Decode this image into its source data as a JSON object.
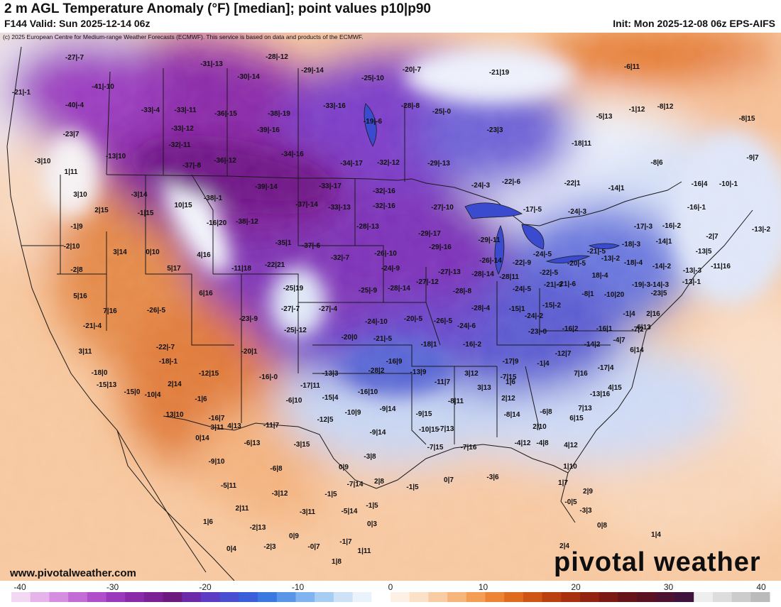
{
  "header": {
    "title": "2 m AGL Temperature Anomaly (°F) [median]; point values p10|p90",
    "subtitle": "F144 Valid: Sun 2025-12-14 06z",
    "init": "Init: Mon 2025-12-08 06z EPS-AIFS"
  },
  "credit": "(c) 2025 European Centre for Medium-range Weather Forecasts (ECMWF). This service is based on data and products of the ECMWF.",
  "website": "www.pivotalweather.com",
  "brand": "pivotal weather",
  "colorbar": {
    "ticks": [
      "-40",
      "-30",
      "-20",
      "-10",
      "0",
      "10",
      "20",
      "30",
      "40"
    ],
    "colors": [
      "#f3d8f3",
      "#e6b3ea",
      "#d68fe0",
      "#c46cd6",
      "#b04fc9",
      "#9b39bd",
      "#8a2aa9",
      "#7b2095",
      "#6c1a7e",
      "#6b2aa8",
      "#5c3cc4",
      "#4a4ed1",
      "#3a5fd8",
      "#3b78e0",
      "#5a96e8",
      "#80b3ef",
      "#a8cdf3",
      "#cde2f7",
      "#eaf2fb",
      "#ffffff",
      "#fdf1e6",
      "#fbe1c8",
      "#f9cda3",
      "#f6b67b",
      "#f39d55",
      "#ec8335",
      "#df6b1f",
      "#cf5515",
      "#bb4010",
      "#a8300f",
      "#922310",
      "#7b1a12",
      "#671419",
      "#5a1223",
      "#4d1230",
      "#3f133c",
      "#eeeeee",
      "#dddddd",
      "#cccccc",
      "#bbbbbb"
    ]
  },
  "map_data": {
    "type": "weather-anomaly-map",
    "variable": "2 m AGL Temperature Anomaly (°F) [median]",
    "point_values_format": "p10|p90",
    "points": [
      {
        "label": "-27|-7"
      },
      {
        "label": "-21|-1"
      },
      {
        "label": "-41|-10"
      },
      {
        "label": "-40|-4"
      },
      {
        "label": "-23|7"
      },
      {
        "label": "-13|10"
      },
      {
        "label": "-3|10"
      },
      {
        "label": "1|11"
      },
      {
        "label": "-31|-13"
      },
      {
        "label": "-28|-12"
      },
      {
        "label": "-30|-14"
      },
      {
        "label": "-29|-14"
      },
      {
        "label": "-25|-10"
      },
      {
        "label": "-20|-7"
      },
      {
        "label": "-21|19"
      },
      {
        "label": "-33|-4"
      },
      {
        "label": "-33|-11"
      },
      {
        "label": "-36|-15"
      },
      {
        "label": "-38|-19"
      },
      {
        "label": "-33|-16"
      },
      {
        "label": "-28|-8"
      },
      {
        "label": "-25|-0"
      },
      {
        "label": "-33|-12"
      },
      {
        "label": "-39|-16"
      },
      {
        "label": "-19|-6"
      },
      {
        "label": "-23|3"
      },
      {
        "label": "-32|-11"
      },
      {
        "label": "-34|-16"
      },
      {
        "label": "-18|11"
      },
      {
        "label": "-37|-8"
      },
      {
        "label": "-36|-12"
      },
      {
        "label": "-34|-17"
      },
      {
        "label": "-32|-12"
      },
      {
        "label": "-29|-13"
      },
      {
        "label": "-24|-3"
      },
      {
        "label": "-22|-6"
      },
      {
        "label": "-22|1"
      },
      {
        "label": "-14|1"
      },
      {
        "label": "-16|4"
      },
      {
        "label": "-10|-1"
      },
      {
        "label": "-8|6"
      },
      {
        "label": "-9|7"
      },
      {
        "label": "-5|13"
      },
      {
        "label": "-1|12"
      },
      {
        "label": "-8|12"
      },
      {
        "label": "-6|11"
      },
      {
        "label": "-8|15"
      },
      {
        "label": "3|10"
      },
      {
        "label": "-3|14"
      },
      {
        "label": "2|15"
      },
      {
        "label": "-1|15"
      },
      {
        "label": "10|15"
      },
      {
        "label": "-38|-1"
      },
      {
        "label": "-39|-14"
      },
      {
        "label": "-33|-17"
      },
      {
        "label": "-37|-14"
      },
      {
        "label": "-33|-13"
      },
      {
        "label": "-32|-16"
      },
      {
        "label": "-32|-16"
      },
      {
        "label": "-27|-10"
      },
      {
        "label": "-17|-5"
      },
      {
        "label": "-24|-3"
      },
      {
        "label": "-16|-1"
      },
      {
        "label": "-1|9"
      },
      {
        "label": "-16|20"
      },
      {
        "label": "-38|-12"
      },
      {
        "label": "-28|-13"
      },
      {
        "label": "-29|-17"
      },
      {
        "label": "-17|-3"
      },
      {
        "label": "-16|-2"
      },
      {
        "label": "-14|1"
      },
      {
        "label": "-13|-2"
      },
      {
        "label": "-2|10"
      },
      {
        "label": "3|14"
      },
      {
        "label": "0|10"
      },
      {
        "label": "4|16"
      },
      {
        "label": "-35|1"
      },
      {
        "label": "-37|-6"
      },
      {
        "label": "-29|-16"
      },
      {
        "label": "-29|-11"
      },
      {
        "label": "-21|-5"
      },
      {
        "label": "-18|-3"
      },
      {
        "label": "-18|-4"
      },
      {
        "label": "-13|5"
      },
      {
        "label": "-2|8"
      },
      {
        "label": "5|17"
      },
      {
        "label": "-11|18"
      },
      {
        "label": "-22|21"
      },
      {
        "label": "-32|-7"
      },
      {
        "label": "-26|-10"
      },
      {
        "label": "-26|-14"
      },
      {
        "label": "-22|-9"
      },
      {
        "label": "-24|-5"
      },
      {
        "label": "-20|-5"
      },
      {
        "label": "-13|-2"
      },
      {
        "label": "-14|-2"
      },
      {
        "label": "-13|-3"
      },
      {
        "label": "-2|7"
      },
      {
        "label": "6|16"
      },
      {
        "label": "-25|19"
      },
      {
        "label": "-24|-9"
      },
      {
        "label": "-27|-12"
      },
      {
        "label": "-27|-13"
      },
      {
        "label": "-28|-14"
      },
      {
        "label": "-28|11"
      },
      {
        "label": "-22|-5"
      },
      {
        "label": "-21|-6"
      },
      {
        "label": "18|-4"
      },
      {
        "label": "-19|-3"
      },
      {
        "label": "-14|-3"
      },
      {
        "label": "-13|-1"
      },
      {
        "label": "5|16"
      },
      {
        "label": "7|16"
      },
      {
        "label": "-26|-5"
      },
      {
        "label": "-25|-9"
      },
      {
        "label": "-28|-14"
      },
      {
        "label": "-28|-8"
      },
      {
        "label": "-24|-5"
      },
      {
        "label": "-21|-3"
      },
      {
        "label": "-8|1"
      },
      {
        "label": "-10|20"
      },
      {
        "label": "-23|5"
      },
      {
        "label": "-27|-7"
      },
      {
        "label": "-27|-4"
      },
      {
        "label": "-28|-4"
      },
      {
        "label": "-15|1"
      },
      {
        "label": "-15|-2"
      },
      {
        "label": "-1|4"
      },
      {
        "label": "2|16"
      },
      {
        "label": "-11|16"
      },
      {
        "label": "-23|-9"
      },
      {
        "label": "-25|-12"
      },
      {
        "label": "-24|-10"
      },
      {
        "label": "-20|-5"
      },
      {
        "label": "-26|-5"
      },
      {
        "label": "-24|-6"
      },
      {
        "label": "-24|-2"
      },
      {
        "label": "-23|-0"
      },
      {
        "label": "-16|2"
      },
      {
        "label": "-16|1"
      },
      {
        "label": "-7|2"
      },
      {
        "label": "6|13"
      },
      {
        "label": "-21|-4"
      },
      {
        "label": "-22|-7"
      },
      {
        "label": "-20|0"
      },
      {
        "label": "-21|-5"
      },
      {
        "label": "-18|1"
      },
      {
        "label": "-16|-2"
      },
      {
        "label": "-14|2"
      },
      {
        "label": "-4|7"
      },
      {
        "label": "6|14"
      },
      {
        "label": "3|11"
      },
      {
        "label": "-18|-1"
      },
      {
        "label": "-20|1"
      },
      {
        "label": "-16|9"
      },
      {
        "label": "-17|9"
      },
      {
        "label": "-12|7"
      },
      {
        "label": "-1|4"
      },
      {
        "label": "-17|4"
      },
      {
        "label": "-18|0"
      },
      {
        "label": "-13|3"
      },
      {
        "label": "-28|2"
      },
      {
        "label": "-13|9"
      },
      {
        "label": "3|12"
      },
      {
        "label": "7|16"
      },
      {
        "label": "2|14"
      },
      {
        "label": "-12|15"
      },
      {
        "label": "-16|-0"
      },
      {
        "label": "-17|11"
      },
      {
        "label": "-11|7"
      },
      {
        "label": "1|6"
      },
      {
        "label": "4|15"
      },
      {
        "label": "-15|13"
      },
      {
        "label": "-15|0"
      },
      {
        "label": "-10|4"
      },
      {
        "label": "-15|4"
      },
      {
        "label": "-16|10"
      },
      {
        "label": "-8|11"
      },
      {
        "label": "-7|15"
      },
      {
        "label": "3|13"
      },
      {
        "label": "-13|16"
      },
      {
        "label": "-6|10"
      },
      {
        "label": "-1|6"
      },
      {
        "label": "2|12"
      },
      {
        "label": "7|13"
      },
      {
        "label": "13|10"
      },
      {
        "label": "-16|7"
      },
      {
        "label": "-12|5"
      },
      {
        "label": "-10|9"
      },
      {
        "label": "-9|14"
      },
      {
        "label": "-9|15"
      },
      {
        "label": "-8|14"
      },
      {
        "label": "-6|8"
      },
      {
        "label": "6|15"
      },
      {
        "label": "4|13"
      },
      {
        "label": "-11|7"
      },
      {
        "label": "-9|14"
      },
      {
        "label": "-10|15"
      },
      {
        "label": "-7|13"
      },
      {
        "label": "2|10"
      },
      {
        "label": "3|11"
      },
      {
        "label": "0|14"
      },
      {
        "label": "-6|13"
      },
      {
        "label": "-3|15"
      },
      {
        "label": "-7|15"
      },
      {
        "label": "-7|16"
      },
      {
        "label": "-4|12"
      },
      {
        "label": "-4|8"
      },
      {
        "label": "4|12"
      },
      {
        "label": "-9|10"
      },
      {
        "label": "-3|8"
      },
      {
        "label": "1|10"
      },
      {
        "label": "-6|8"
      },
      {
        "label": "0|9"
      },
      {
        "label": "0|7"
      },
      {
        "label": "-3|6"
      },
      {
        "label": "1|7"
      },
      {
        "label": "-5|11"
      },
      {
        "label": "-7|14"
      },
      {
        "label": "2|8"
      },
      {
        "label": "-1|5"
      },
      {
        "label": "2|9"
      },
      {
        "label": "-3|12"
      },
      {
        "label": "-1|5"
      },
      {
        "label": "-0|5"
      },
      {
        "label": "2|11"
      },
      {
        "label": "-3|11"
      },
      {
        "label": "-5|14"
      },
      {
        "label": "-1|5"
      },
      {
        "label": "-3|3"
      },
      {
        "label": "1|6"
      },
      {
        "label": "-2|13"
      },
      {
        "label": "0|3"
      },
      {
        "label": "0|8"
      },
      {
        "label": "0|9"
      },
      {
        "label": "-1|7"
      },
      {
        "label": "1|4"
      },
      {
        "label": "0|4"
      },
      {
        "label": "-2|3"
      },
      {
        "label": "-0|7"
      },
      {
        "label": "1|11"
      },
      {
        "label": "1|8"
      },
      {
        "label": "2|4"
      }
    ]
  }
}
